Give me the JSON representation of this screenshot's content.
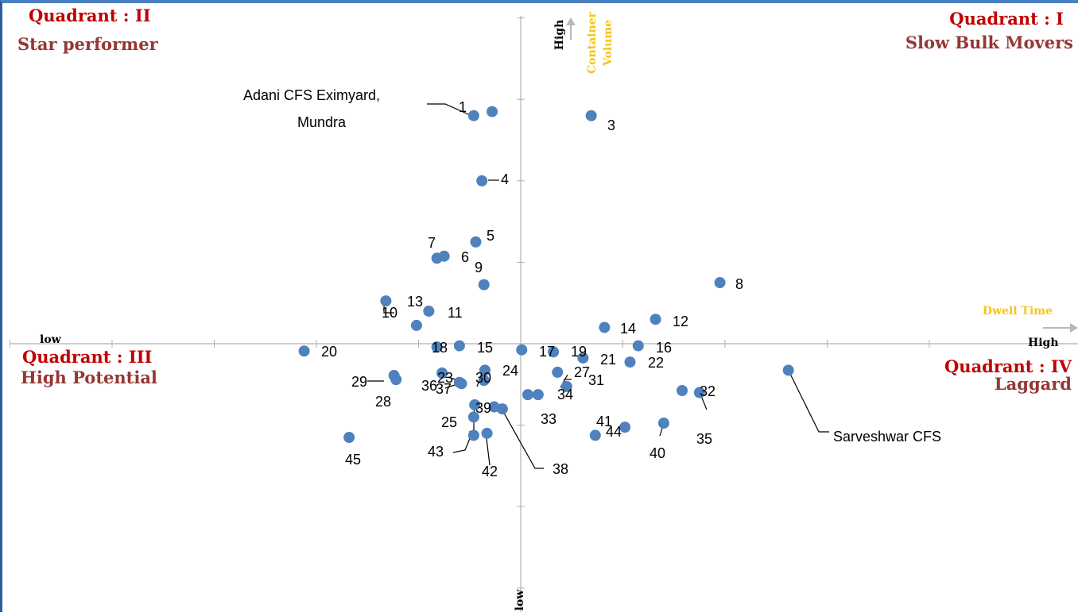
{
  "quadrants": {
    "q1": {
      "title": "Quadrant : I",
      "subtitle": "Slow Bulk Movers"
    },
    "q2": {
      "title": "Quadrant : II",
      "subtitle": "Star performer"
    },
    "q3": {
      "title": "Quadrant : III",
      "subtitle": "High Potential"
    },
    "q4": {
      "title": "Quadrant : IV",
      "subtitle": "Laggard"
    }
  },
  "axes": {
    "x_name": "Dwell Time",
    "x_low": "low",
    "x_high": "High",
    "y_name_line1": "Container",
    "y_name_line2": "Volume",
    "y_high": "High",
    "y_low": "low"
  },
  "colors": {
    "point": "#4f81bd",
    "axis": "#b0b0b0",
    "quadrant_title": "#c00000",
    "quadrant_subtitle": "#953734",
    "axis_name": "#f5c518"
  },
  "chart_data": {
    "type": "scatter",
    "title": "",
    "xlabel": "Dwell Time",
    "ylabel": "Container Volume",
    "xlim": [
      -5.2,
      5.5
    ],
    "ylim": [
      -6.4,
      8.3
    ],
    "grid": false,
    "points": [
      {
        "id": "1",
        "x": -0.46,
        "y": 5.6
      },
      {
        "id": "2",
        "x": -0.28,
        "y": 5.7
      },
      {
        "id": "3",
        "x": 0.69,
        "y": 5.6
      },
      {
        "id": "4",
        "x": -0.38,
        "y": 4.0
      },
      {
        "id": "5",
        "x": -0.44,
        "y": 2.5
      },
      {
        "id": "6",
        "x": -0.75,
        "y": 2.15
      },
      {
        "id": "7",
        "x": -0.82,
        "y": 2.1
      },
      {
        "id": "8",
        "x": 1.95,
        "y": 1.5
      },
      {
        "id": "9",
        "x": -0.36,
        "y": 1.45
      },
      {
        "id": "10",
        "x": -1.32,
        "y": 1.05
      },
      {
        "id": "11",
        "x": -0.9,
        "y": 0.8
      },
      {
        "id": "12",
        "x": 1.32,
        "y": 0.6
      },
      {
        "id": "13",
        "x": -1.02,
        "y": 0.45
      },
      {
        "id": "14",
        "x": 0.82,
        "y": 0.4
      },
      {
        "id": "15",
        "x": -0.6,
        "y": -0.05
      },
      {
        "id": "16",
        "x": 1.15,
        "y": -0.05
      },
      {
        "id": "17",
        "x": 0.01,
        "y": -0.15
      },
      {
        "id": "18",
        "x": -0.82,
        "y": -0.08
      },
      {
        "id": "19",
        "x": 0.32,
        "y": -0.2
      },
      {
        "id": "20",
        "x": -2.12,
        "y": -0.18
      },
      {
        "id": "21",
        "x": 0.61,
        "y": -0.35
      },
      {
        "id": "22",
        "x": 1.07,
        "y": -0.45
      },
      {
        "id": "23",
        "x": -0.77,
        "y": -0.72
      },
      {
        "id": "24",
        "x": -0.35,
        "y": -0.65
      },
      {
        "id": "25",
        "x": -0.46,
        "y": -1.8
      },
      {
        "id": "26",
        "x": -0.45,
        "y": -1.5
      },
      {
        "id": "27",
        "x": 0.36,
        "y": -0.7
      },
      {
        "id": "28",
        "x": -1.22,
        "y": -0.88
      },
      {
        "id": "29",
        "x": -1.24,
        "y": -0.78
      },
      {
        "id": "30",
        "x": -0.36,
        "y": -0.9
      },
      {
        "id": "31",
        "x": 0.45,
        "y": -1.05
      },
      {
        "id": "32",
        "x": 1.75,
        "y": -1.2
      },
      {
        "id": "33",
        "x": 0.07,
        "y": -1.25
      },
      {
        "id": "34",
        "x": 0.17,
        "y": -1.25
      },
      {
        "id": "35",
        "x": 1.58,
        "y": -1.15
      },
      {
        "id": "36",
        "x": -0.6,
        "y": -0.95
      },
      {
        "id": "37",
        "x": -0.58,
        "y": -0.98
      },
      {
        "id": "38",
        "x": -0.18,
        "y": -1.6
      },
      {
        "id": "39",
        "x": -0.26,
        "y": -1.55
      },
      {
        "id": "40",
        "x": 1.4,
        "y": -1.95
      },
      {
        "id": "41",
        "x": 1.02,
        "y": -2.05
      },
      {
        "id": "42",
        "x": -0.33,
        "y": -2.2
      },
      {
        "id": "43",
        "x": -0.46,
        "y": -2.25
      },
      {
        "id": "44",
        "x": 0.73,
        "y": -2.25
      },
      {
        "id": "45",
        "x": -1.68,
        "y": -2.3
      },
      {
        "id": "Sarveshwar CFS",
        "x": 2.62,
        "y": -0.65
      }
    ],
    "labels": [
      {
        "text": "1"
      },
      {
        "text": "3"
      },
      {
        "text": "4"
      },
      {
        "text": "5"
      },
      {
        "text": "6"
      },
      {
        "text": "7"
      },
      {
        "text": "8"
      },
      {
        "text": "9"
      },
      {
        "text": "10"
      },
      {
        "text": "11"
      },
      {
        "text": "12"
      },
      {
        "text": "13"
      },
      {
        "text": "14"
      },
      {
        "text": "15"
      },
      {
        "text": "16"
      },
      {
        "text": "17"
      },
      {
        "text": "18"
      },
      {
        "text": "19"
      },
      {
        "text": "20"
      },
      {
        "text": "21"
      },
      {
        "text": "22"
      },
      {
        "text": "23"
      },
      {
        "text": "24"
      },
      {
        "text": "25"
      },
      {
        "text": "27"
      },
      {
        "text": "28"
      },
      {
        "text": "29"
      },
      {
        "text": "30"
      },
      {
        "text": "31"
      },
      {
        "text": "32"
      },
      {
        "text": "33"
      },
      {
        "text": "34"
      },
      {
        "text": "35"
      },
      {
        "text": "36"
      },
      {
        "text": "37"
      },
      {
        "text": "38"
      },
      {
        "text": "39"
      },
      {
        "text": "40"
      },
      {
        "text": "41"
      },
      {
        "text": "42"
      },
      {
        "text": "43"
      },
      {
        "text": "44"
      },
      {
        "text": "45"
      },
      {
        "text": "Sarveshwar CFS"
      },
      {
        "text": "Adani CFS Eximyard,"
      },
      {
        "text": "Mundra"
      }
    ]
  }
}
